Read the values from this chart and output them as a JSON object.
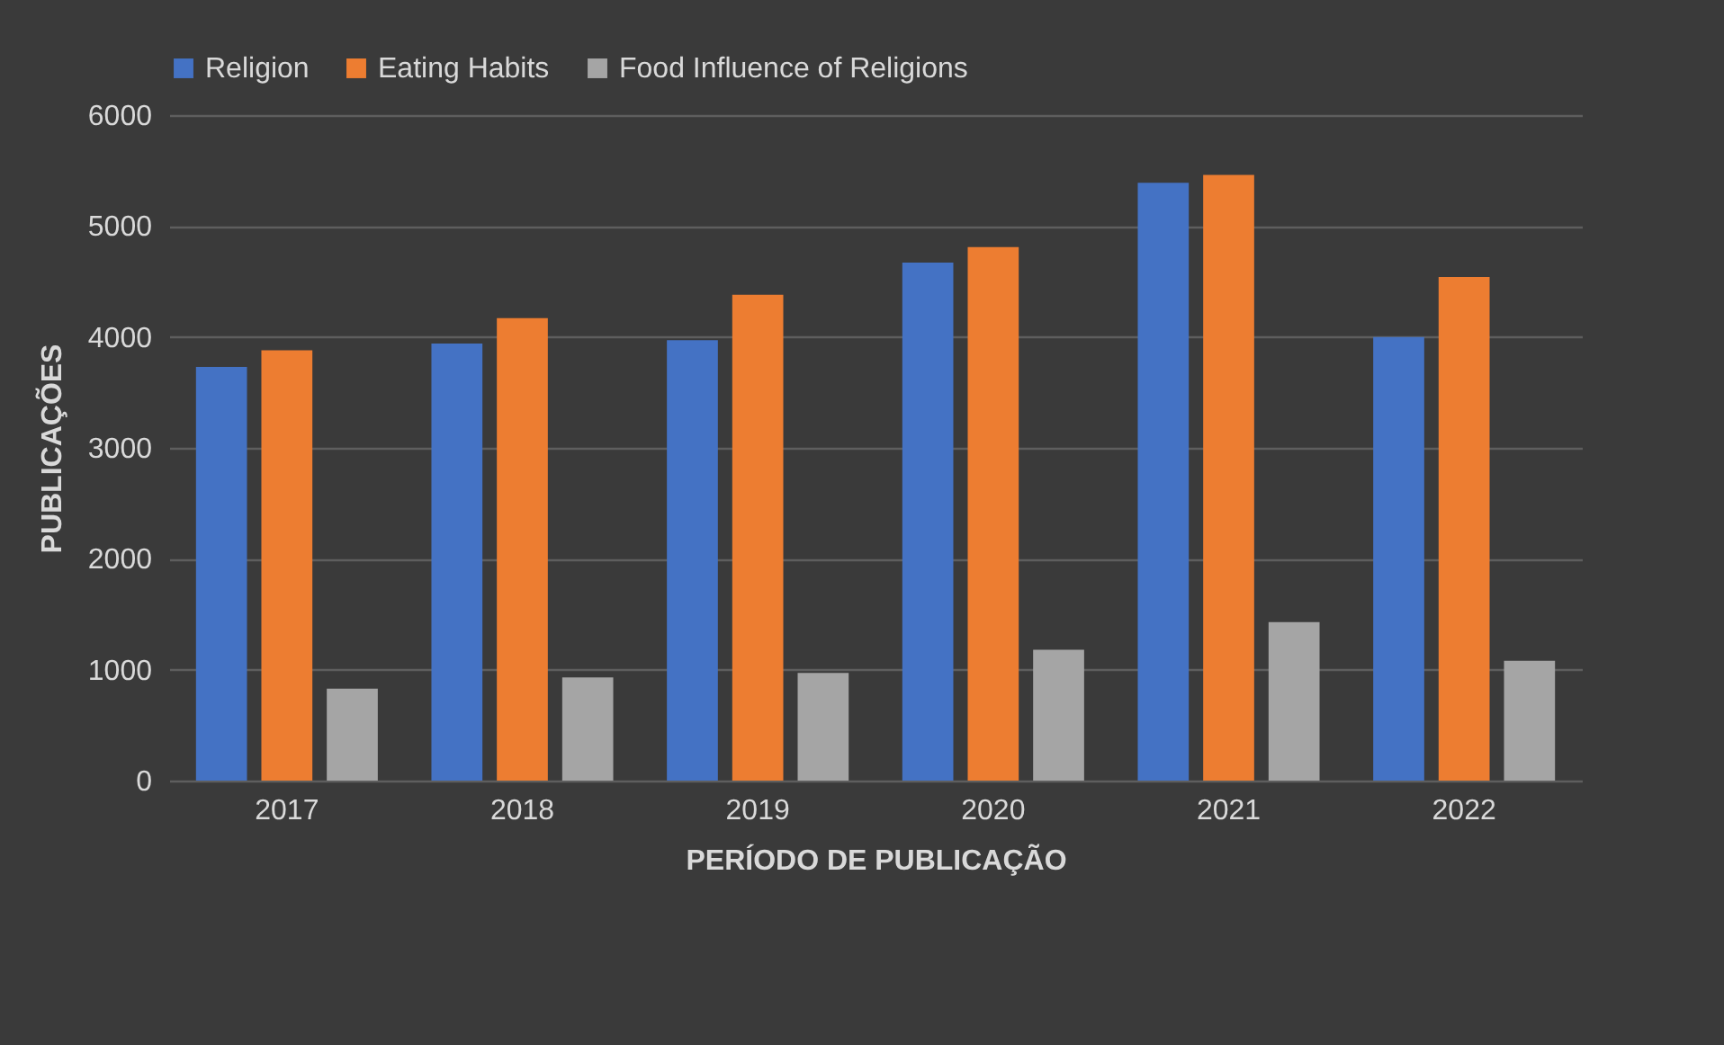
{
  "chart_data": {
    "type": "bar",
    "xlabel": "PERÍODO DE PUBLICAÇÃO",
    "ylabel": "PUBLICAÇÕES",
    "categories": [
      "2017",
      "2018",
      "2019",
      "2020",
      "2021",
      "2022"
    ],
    "series": [
      {
        "name": "Religion",
        "color": "#4472c4",
        "values": [
          3730,
          3940,
          3970,
          4670,
          5390,
          4000
        ]
      },
      {
        "name": "Eating Habits",
        "color": "#ed7d31",
        "values": [
          3880,
          4170,
          4380,
          4810,
          5460,
          4540
        ]
      },
      {
        "name": "Food Influence of Religions",
        "color": "#a5a5a5",
        "values": [
          830,
          930,
          970,
          1180,
          1430,
          1080
        ]
      }
    ],
    "ylim": [
      0,
      6000
    ],
    "yticks": [
      0,
      1000,
      2000,
      3000,
      4000,
      5000,
      6000
    ],
    "grid": "y",
    "legend": "top"
  }
}
